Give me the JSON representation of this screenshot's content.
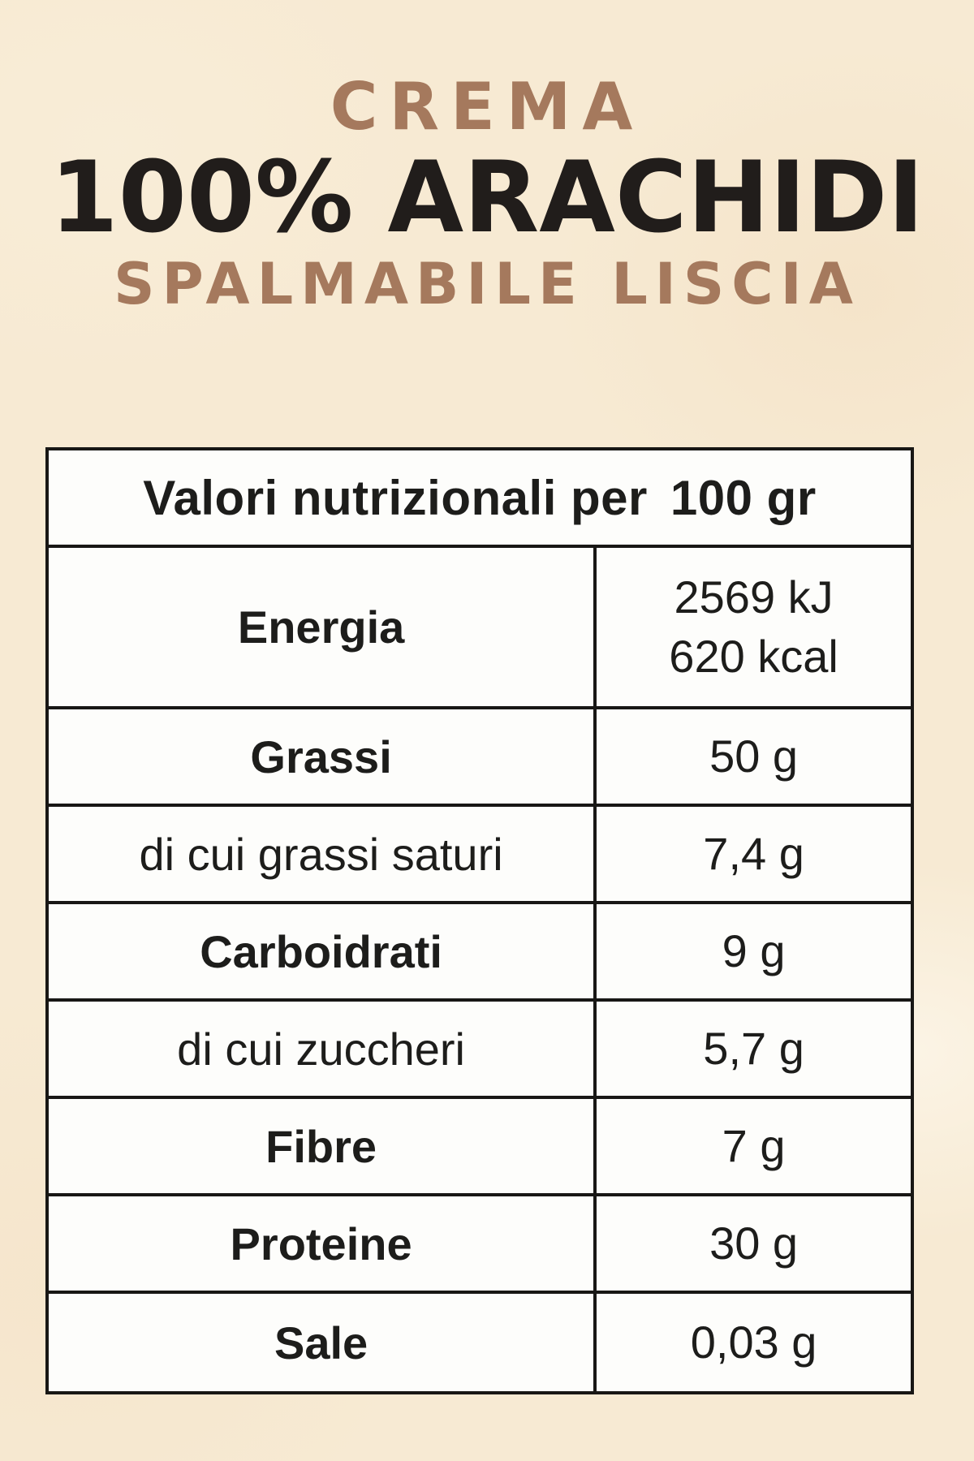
{
  "page": {
    "background_color": "#f7ead3"
  },
  "title": {
    "kicker": "CREMA",
    "main": "100% ARACHIDI",
    "subtitle": "SPALMABILE LISCIA",
    "accent_color": "#a5795d",
    "dark_color": "#211d1b"
  },
  "nutrition_table": {
    "border_color": "#181715",
    "cell_background": "#fdfdfb",
    "header": {
      "label": "Valori nutrizionali per",
      "amount": "100 gr"
    },
    "rows": [
      {
        "label": "Energia",
        "bold": true,
        "values": [
          "2569 kJ",
          "620 kcal"
        ]
      },
      {
        "label": "Grassi",
        "bold": true,
        "values": [
          "50 g"
        ]
      },
      {
        "label": "di cui grassi saturi",
        "bold": false,
        "values": [
          "7,4 g"
        ]
      },
      {
        "label": "Carboidrati",
        "bold": true,
        "values": [
          "9 g"
        ]
      },
      {
        "label": "di cui zuccheri",
        "bold": false,
        "values": [
          "5,7 g"
        ]
      },
      {
        "label": "Fibre",
        "bold": true,
        "values": [
          "7 g"
        ]
      },
      {
        "label": "Proteine",
        "bold": true,
        "values": [
          "30 g"
        ]
      },
      {
        "label": "Sale",
        "bold": true,
        "values": [
          "0,03 g"
        ]
      }
    ]
  }
}
